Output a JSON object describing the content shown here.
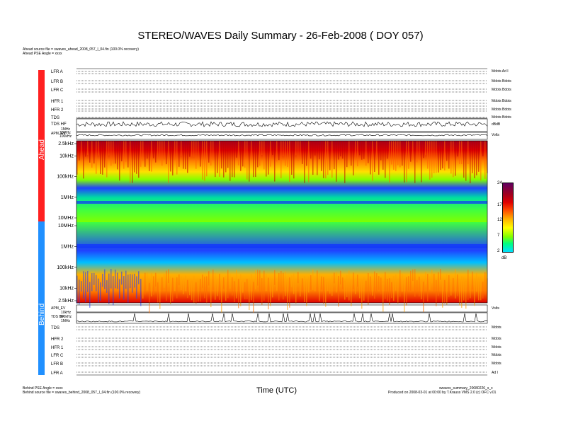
{
  "title": "STEREO/WAVES Daily Summary - 26-Feb-2008 ( DOY 057)",
  "ahead_header": {
    "source": "Ahead source file = swaves_ahead_2008_057_l_04.fin (100.0% recovery)",
    "pse": "Ahead PSE Angle = xxxx"
  },
  "behind_footer": {
    "pse": "Behind PSE Angle = xxxx",
    "source": "Behind source file = swaves_behind_2008_057_l_04.fin (100.0% recovery)"
  },
  "xlabel": "Time (UTC)",
  "footer_right": {
    "file": "swaves_summary_20080226_s_x",
    "produced": "Produced on 2008-03-01 at 00:00 by T.Krauss VMS 2.0 (c) OFC v.01"
  },
  "spacecraft": {
    "ahead": "Ahead",
    "behind": "Behind"
  },
  "colors": {
    "ahead": "#ff2020",
    "behind": "#2090ff"
  },
  "ahead_rows": [
    {
      "label": "LFR A",
      "right": "Mdots\nAd I"
    },
    {
      "label": "LFR B",
      "right": "Mdots\nBdots"
    },
    {
      "label": "LFR C",
      "right": "Mdots\nBdots"
    },
    {
      "label": "HFR 1",
      "right": "Mdots\nBdots"
    },
    {
      "label": "HFR 2",
      "right": "Mdots\nBdots"
    },
    {
      "label": "TDS",
      "right": "Mdots\nBdots"
    },
    {
      "label": "TDS HF",
      "right": "dBdB"
    }
  ],
  "behind_rows": [
    {
      "label": "TDS",
      "right": "Mdots"
    },
    {
      "label": "HFR 2",
      "right": "Mdots"
    },
    {
      "label": "HFR 1",
      "right": "Mdots"
    },
    {
      "label": "LFR C",
      "right": "Mdots"
    },
    {
      "label": "LFR B",
      "right": "Mdots"
    },
    {
      "label": "LFR A",
      "right": "Ad I"
    }
  ],
  "aux_labels": {
    "ahead_small": [
      "1MHz",
      "10MHz",
      "100kHz"
    ],
    "behind_small": [
      "10kHz",
      "100kHz",
      "1MHz"
    ],
    "apm_ahead": "APM_EV",
    "apm_behind": "APM_EV",
    "tds_hf_behind": "TDS HF",
    "volts": "Volts"
  },
  "chart_data": {
    "type": "heatmap",
    "title": "STEREO/WAVES Daily Summary - 26-Feb-2008 ( DOY 057)",
    "xlabel": "Time (UTC)",
    "ylabel": "",
    "panels": [
      {
        "name": "Ahead",
        "ytick_labels": [
          "2.5kHz",
          "10kHz",
          "100kHz",
          "1MHz",
          "10MHz"
        ],
        "ytick_freq_hz": [
          2500,
          10000,
          100000,
          1000000,
          10000000
        ]
      },
      {
        "name": "Behind",
        "ytick_labels": [
          "10MHz",
          "1MHz",
          "100kHz",
          "10kHz",
          "2.5kHz"
        ],
        "ytick_freq_hz": [
          10000000,
          1000000,
          100000,
          10000,
          2500
        ]
      }
    ],
    "colorbar": {
      "unit": "dB",
      "ticks": [
        2,
        7,
        12,
        17,
        24
      ],
      "range": [
        2,
        24
      ]
    }
  }
}
